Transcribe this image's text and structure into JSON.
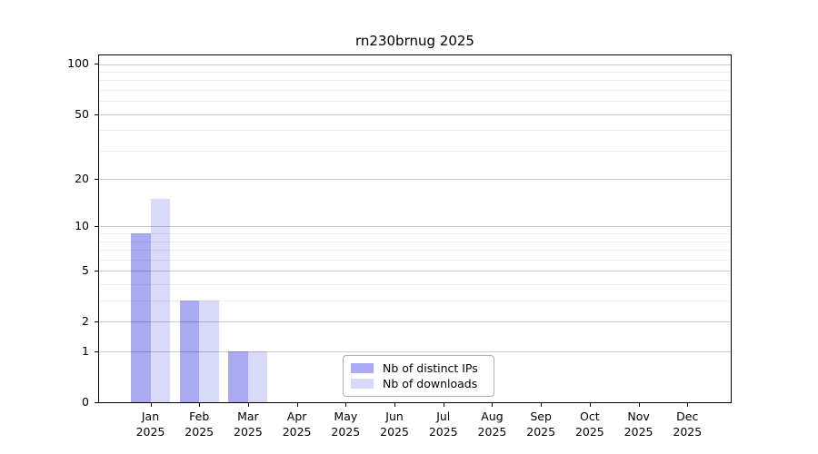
{
  "chart_data": {
    "type": "bar",
    "title": "rn230brnug 2025",
    "categories": [
      "Jan 2025",
      "Feb 2025",
      "Mar 2025",
      "Apr 2025",
      "May 2025",
      "Jun 2025",
      "Jul 2025",
      "Aug 2025",
      "Sep 2025",
      "Oct 2025",
      "Nov 2025",
      "Dec 2025"
    ],
    "x_tick_labels": [
      {
        "month": "Jan",
        "year": "2025"
      },
      {
        "month": "Feb",
        "year": "2025"
      },
      {
        "month": "Mar",
        "year": "2025"
      },
      {
        "month": "Apr",
        "year": "2025"
      },
      {
        "month": "May",
        "year": "2025"
      },
      {
        "month": "Jun",
        "year": "2025"
      },
      {
        "month": "Jul",
        "year": "2025"
      },
      {
        "month": "Aug",
        "year": "2025"
      },
      {
        "month": "Sep",
        "year": "2025"
      },
      {
        "month": "Oct",
        "year": "2025"
      },
      {
        "month": "Nov",
        "year": "2025"
      },
      {
        "month": "Dec",
        "year": "2025"
      }
    ],
    "series": [
      {
        "name": "Nb of distinct IPs",
        "color": "#aaaaf2",
        "values": [
          9,
          3,
          1,
          0,
          0,
          0,
          0,
          0,
          0,
          0,
          0,
          0
        ]
      },
      {
        "name": "Nb of downloads",
        "color": "#d9d9f8",
        "values": [
          15,
          3,
          1,
          0,
          0,
          0,
          0,
          0,
          0,
          0,
          0,
          0
        ]
      }
    ],
    "y_axis": {
      "scale": "log10(1+value)",
      "ylim": [
        0,
        114
      ],
      "major_ticks": [
        100,
        50,
        20,
        10,
        5,
        2,
        1,
        0
      ],
      "major_tick_labels": [
        "100",
        "50",
        "20",
        "10",
        "5",
        "2",
        "1",
        "0"
      ],
      "minor_ticks": [
        3,
        4,
        6,
        7,
        8,
        9,
        30,
        40,
        60,
        70,
        80,
        90
      ]
    },
    "grid": true,
    "legend": {
      "position": "lower center",
      "items": [
        {
          "label": "Nb of distinct IPs",
          "color": "#aaaaf2"
        },
        {
          "label": "Nb of downloads",
          "color": "#d9d9f8"
        }
      ]
    }
  }
}
